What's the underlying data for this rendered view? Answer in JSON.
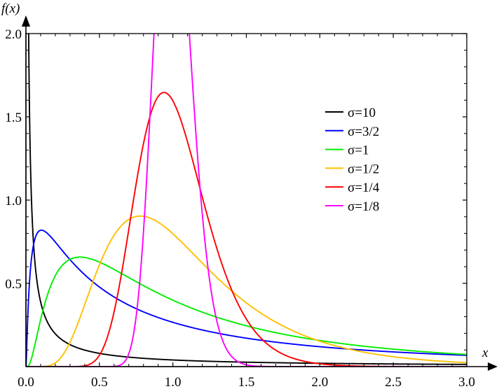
{
  "chart_data": {
    "type": "line",
    "title": "",
    "xlabel": "x",
    "ylabel": "f(x)",
    "xlim": [
      0,
      3.0
    ],
    "ylim": [
      0,
      2.0
    ],
    "x_ticks": [
      "0.0",
      "0.5",
      "1.0",
      "1.5",
      "2.0",
      "2.5",
      "3.0"
    ],
    "y_ticks": [
      "0.5",
      "1.0",
      "1.5",
      "2.0"
    ],
    "x_tick_values": [
      0,
      0.5,
      1.0,
      1.5,
      2.0,
      2.5,
      3.0
    ],
    "y_tick_values": [
      0.5,
      1.0,
      1.5,
      2.0
    ],
    "grid": false,
    "legend_position": "upper-right",
    "mu": 0,
    "series": [
      {
        "name": "σ=10",
        "sigma": 10,
        "color": "#000000"
      },
      {
        "name": "σ=3/2",
        "sigma": 1.5,
        "color": "#0000ff"
      },
      {
        "name": "σ=1",
        "sigma": 1.0,
        "color": "#00ee00"
      },
      {
        "name": "σ=1/2",
        "sigma": 0.5,
        "color": "#ffbf00"
      },
      {
        "name": "σ=1/4",
        "sigma": 0.25,
        "color": "#ff0000"
      },
      {
        "name": "σ=1/8",
        "sigma": 0.125,
        "color": "#ff00ff"
      }
    ]
  }
}
